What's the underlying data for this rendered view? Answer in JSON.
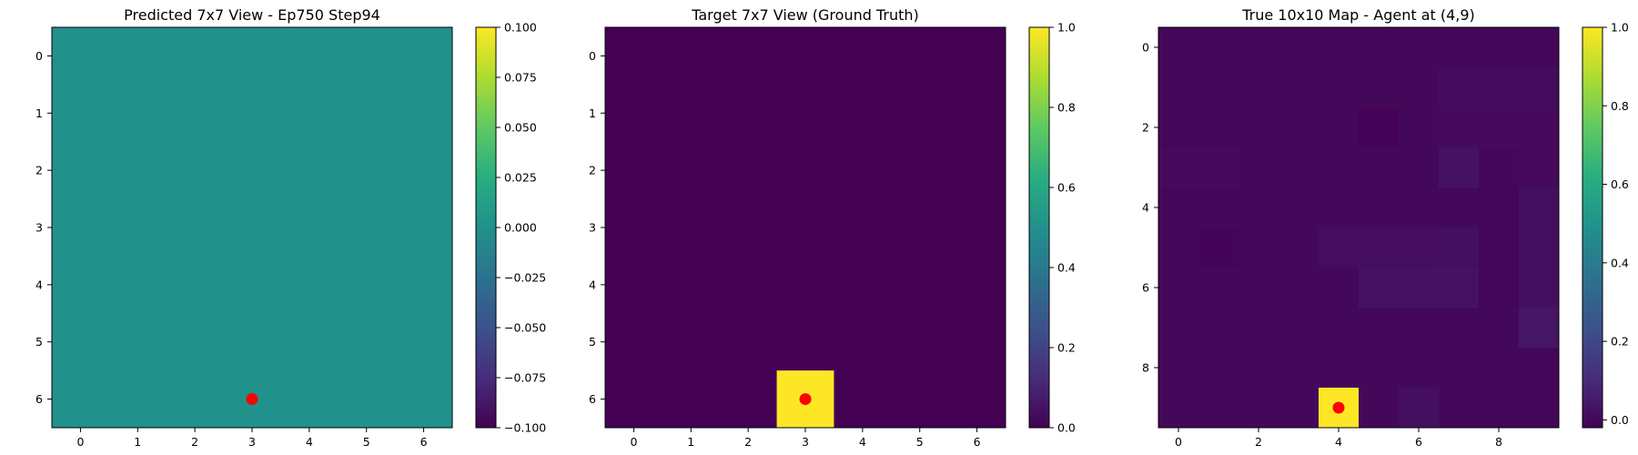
{
  "chart_data": [
    {
      "type": "heatmap",
      "title": "Predicted 7x7 View - Ep750 Step94",
      "rows": 7,
      "cols": 7,
      "values": [
        [
          0,
          0,
          0,
          0,
          0,
          0,
          0
        ],
        [
          0,
          0,
          0,
          0,
          0,
          0,
          0
        ],
        [
          0,
          0,
          0,
          0,
          0,
          0,
          0
        ],
        [
          0,
          0,
          0,
          0,
          0,
          0,
          0
        ],
        [
          0,
          0,
          0,
          0,
          0,
          0,
          0
        ],
        [
          0,
          0,
          0,
          0,
          0,
          0,
          0
        ],
        [
          0,
          0,
          0,
          0,
          0,
          0,
          0
        ]
      ],
      "vmin": -0.1,
      "vmax": 0.1,
      "colormap": "viridis",
      "x_ticks": [
        0,
        1,
        2,
        3,
        4,
        5,
        6
      ],
      "y_ticks": [
        0,
        1,
        2,
        3,
        4,
        5,
        6
      ],
      "colorbar_ticks": [
        -0.1,
        -0.075,
        -0.05,
        -0.025,
        0,
        0.025,
        0.05,
        0.075,
        0.1
      ],
      "colorbar_tick_labels": [
        "−0.100",
        "−0.075",
        "−0.050",
        "−0.025",
        "0.000",
        "0.025",
        "0.050",
        "0.075",
        "0.100"
      ],
      "marker": {
        "x": 3,
        "y": 6,
        "color": "#ff0000"
      }
    },
    {
      "type": "heatmap",
      "title": "Target 7x7 View (Ground Truth)",
      "rows": 7,
      "cols": 7,
      "values": [
        [
          0,
          0,
          0,
          0,
          0,
          0,
          0
        ],
        [
          0,
          0,
          0,
          0,
          0,
          0,
          0
        ],
        [
          0,
          0,
          0,
          0,
          0,
          0,
          0
        ],
        [
          0,
          0,
          0,
          0,
          0,
          0,
          0
        ],
        [
          0,
          0,
          0,
          0,
          0,
          0,
          0
        ],
        [
          0,
          0,
          0,
          0,
          0,
          0,
          0
        ],
        [
          0,
          0,
          0,
          1,
          0,
          0,
          0
        ]
      ],
      "vmin": 0,
      "vmax": 1,
      "colormap": "viridis",
      "x_ticks": [
        0,
        1,
        2,
        3,
        4,
        5,
        6
      ],
      "y_ticks": [
        0,
        1,
        2,
        3,
        4,
        5,
        6
      ],
      "colorbar_ticks": [
        0,
        0.2,
        0.4,
        0.6,
        0.8,
        1
      ],
      "colorbar_tick_labels": [
        "0.0",
        "0.2",
        "0.4",
        "0.6",
        "0.8",
        "1.0"
      ],
      "marker": {
        "x": 3,
        "y": 6,
        "color": "#ff0000"
      }
    },
    {
      "type": "heatmap",
      "title": "True 10x10 Map - Agent at (4,9)",
      "rows": 10,
      "cols": 10,
      "values": [
        [
          0,
          0,
          0,
          0,
          0,
          0,
          0,
          0,
          0,
          0
        ],
        [
          0,
          0,
          0,
          0,
          0,
          0,
          0,
          0.01,
          0.01,
          0.01
        ],
        [
          0,
          0,
          0,
          0,
          0,
          -0.015,
          0,
          0.005,
          0.005,
          0.005
        ],
        [
          0.005,
          0.005,
          0,
          0,
          0,
          0,
          0,
          0.03,
          0,
          0.005
        ],
        [
          0,
          0,
          0,
          0,
          0,
          0,
          0,
          0,
          -0.005,
          0.02
        ],
        [
          0,
          -0.01,
          0,
          0,
          0.015,
          0.015,
          0.015,
          0.02,
          -0.005,
          0.02
        ],
        [
          0,
          0,
          0,
          0,
          0,
          0.025,
          0.03,
          0.03,
          -0.005,
          0.02
        ],
        [
          0,
          0,
          0,
          0,
          0,
          0,
          0,
          0,
          0,
          0.04
        ],
        [
          0,
          0,
          0,
          0,
          0,
          0,
          0,
          0,
          0,
          0
        ],
        [
          0,
          0,
          0,
          0,
          1,
          0,
          0.02,
          0,
          0,
          0
        ]
      ],
      "vmin": -0.02,
      "vmax": 1,
      "colormap": "viridis",
      "x_ticks": [
        0,
        2,
        4,
        6,
        8
      ],
      "y_ticks": [
        0,
        2,
        4,
        6,
        8
      ],
      "colorbar_ticks": [
        0,
        0.2,
        0.4,
        0.6,
        0.8,
        1
      ],
      "colorbar_tick_labels": [
        "0.0",
        "0.2",
        "0.4",
        "0.6",
        "0.8",
        "1.0"
      ],
      "marker": {
        "x": 4,
        "y": 9,
        "color": "#ff0000"
      }
    }
  ]
}
